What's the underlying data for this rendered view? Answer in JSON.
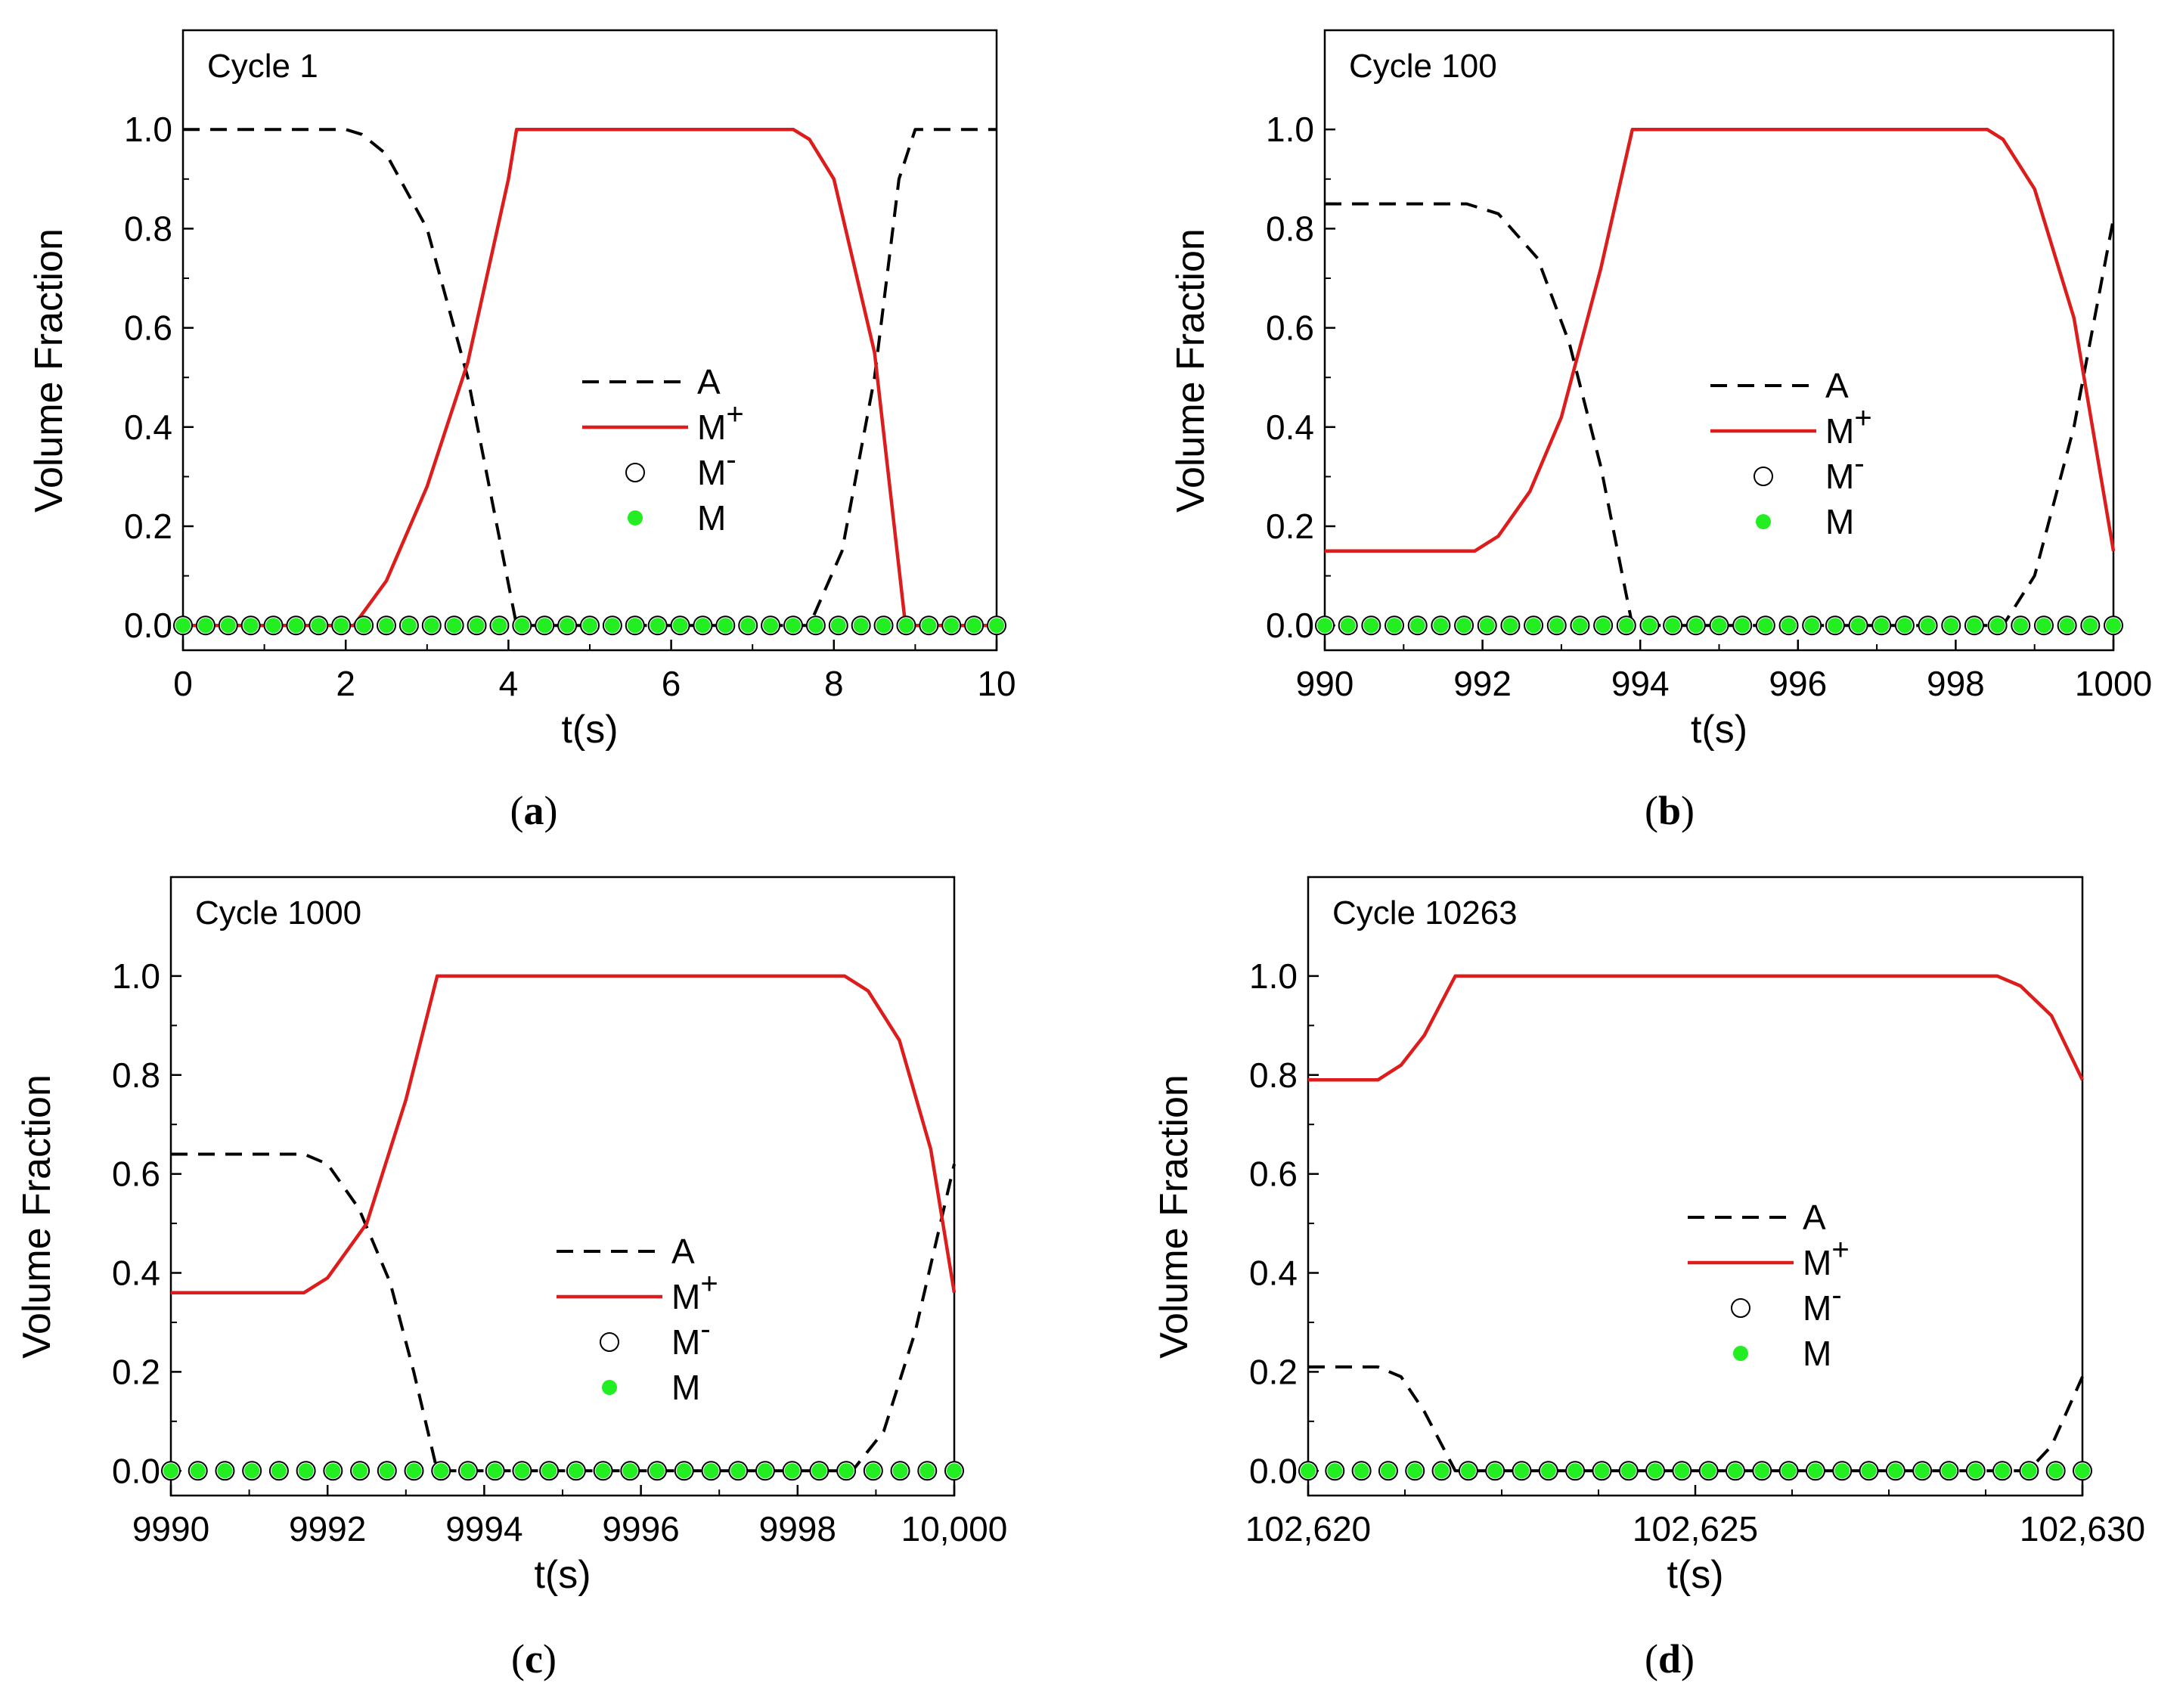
{
  "figure": {
    "colors": {
      "austenite": "#000000",
      "m_plus": "#dd1c1c",
      "m_minus": "#000000",
      "m": "#22ee22",
      "axes": "#000000"
    }
  },
  "chart_data": [
    {
      "id": "a",
      "panel_label": "a",
      "type": "line",
      "title": "Cycle 1",
      "xlabel": "t(s)",
      "ylabel": "Volume Fraction",
      "xlim": [
        0,
        10
      ],
      "ylim": [
        -0.05,
        1.2
      ],
      "x_ticks": [
        0,
        2,
        4,
        6,
        8,
        10
      ],
      "x_tick_labels": [
        "0",
        "2",
        "4",
        "6",
        "8",
        "10"
      ],
      "y_ticks": [
        0.0,
        0.2,
        0.4,
        0.6,
        0.8,
        1.0
      ],
      "y_tick_labels": [
        "0.0",
        "0.2",
        "0.4",
        "0.6",
        "0.8",
        "1.0"
      ],
      "legend": {
        "entries": [
          {
            "label": "A",
            "style": "dashed"
          },
          {
            "label": "M",
            "sup": "+",
            "style": "solid"
          },
          {
            "label": "M",
            "sup": "-",
            "style": "open-circle"
          },
          {
            "label": "M",
            "sup": "",
            "style": "filled-circle"
          }
        ]
      },
      "series": [
        {
          "name": "A",
          "x": [
            0,
            2,
            2.2,
            2.5,
            3.0,
            3.5,
            4.1,
            7.7,
            8.1,
            8.5,
            8.8,
            9.0,
            10
          ],
          "y": [
            1.0,
            1.0,
            0.99,
            0.95,
            0.8,
            0.5,
            0.0,
            0.0,
            0.15,
            0.5,
            0.9,
            1.0,
            1.0
          ]
        },
        {
          "name": "M+",
          "x": [
            0,
            2.1,
            2.5,
            3.0,
            3.5,
            4.0,
            4.1,
            7.5,
            7.7,
            8.0,
            8.5,
            8.88,
            10
          ],
          "y": [
            0.0,
            0.0,
            0.09,
            0.28,
            0.53,
            0.9,
            1.0,
            1.0,
            0.98,
            0.9,
            0.55,
            0.0,
            0.0
          ]
        },
        {
          "name": "M-",
          "x_start": 0,
          "x_end": 10,
          "count": 37,
          "y": 0.0
        },
        {
          "name": "M",
          "x_start": 0,
          "x_end": 10,
          "count": 37,
          "y": 0.0
        }
      ]
    },
    {
      "id": "b",
      "panel_label": "b",
      "type": "line",
      "title": "Cycle 100",
      "xlabel": "t(s)",
      "ylabel": "Volume Fraction",
      "xlim": [
        990,
        1000
      ],
      "ylim": [
        -0.05,
        1.2
      ],
      "x_ticks": [
        990,
        992,
        994,
        996,
        998,
        1000
      ],
      "x_tick_labels": [
        "990",
        "992",
        "994",
        "996",
        "998",
        "1000"
      ],
      "y_ticks": [
        0.0,
        0.2,
        0.4,
        0.6,
        0.8,
        1.0
      ],
      "y_tick_labels": [
        "0.0",
        "0.2",
        "0.4",
        "0.6",
        "0.8",
        "1.0"
      ],
      "legend": {
        "entries": [
          {
            "label": "A",
            "style": "dashed"
          },
          {
            "label": "M",
            "sup": "+",
            "style": "solid"
          },
          {
            "label": "M",
            "sup": "-",
            "style": "open-circle"
          },
          {
            "label": "M",
            "sup": "",
            "style": "filled-circle"
          }
        ]
      },
      "series": [
        {
          "name": "A",
          "x": [
            990,
            991.8,
            992.2,
            992.7,
            993.1,
            993.5,
            993.9,
            998.6,
            999.0,
            999.5,
            1000
          ],
          "y": [
            0.85,
            0.85,
            0.83,
            0.74,
            0.57,
            0.32,
            0.0,
            0.0,
            0.1,
            0.4,
            0.82
          ]
        },
        {
          "name": "M+",
          "x": [
            990,
            991.9,
            992.2,
            992.6,
            993.0,
            993.5,
            993.9,
            998.4,
            998.6,
            999.0,
            999.5,
            1000
          ],
          "y": [
            0.15,
            0.15,
            0.18,
            0.27,
            0.42,
            0.72,
            1.0,
            1.0,
            0.98,
            0.88,
            0.62,
            0.15
          ]
        },
        {
          "name": "M-",
          "x_start": 990,
          "x_end": 1000,
          "count": 35,
          "y": 0.0
        },
        {
          "name": "M",
          "x_start": 990,
          "x_end": 1000,
          "count": 35,
          "y": 0.0
        }
      ]
    },
    {
      "id": "c",
      "panel_label": "c",
      "type": "line",
      "title": "Cycle 1000",
      "xlabel": "t(s)",
      "ylabel": "Volume Fraction",
      "xlim": [
        9990,
        10000
      ],
      "ylim": [
        -0.05,
        1.2
      ],
      "x_ticks": [
        9990,
        9992,
        9994,
        9996,
        9998,
        10000
      ],
      "x_tick_labels": [
        "9990",
        "9992",
        "9994",
        "9996",
        "9998",
        "10,000"
      ],
      "y_ticks": [
        0.0,
        0.2,
        0.4,
        0.6,
        0.8,
        1.0
      ],
      "y_tick_labels": [
        "0.0",
        "0.2",
        "0.4",
        "0.6",
        "0.8",
        "1.0"
      ],
      "legend": {
        "entries": [
          {
            "label": "A",
            "style": "dashed"
          },
          {
            "label": "M",
            "sup": "+",
            "style": "solid"
          },
          {
            "label": "M",
            "sup": "-",
            "style": "open-circle"
          },
          {
            "label": "M",
            "sup": "",
            "style": "filled-circle"
          }
        ]
      },
      "series": [
        {
          "name": "A",
          "x": [
            9990,
            9991.7,
            9992.0,
            9992.4,
            9992.8,
            9993.1,
            9993.4,
            9998.7,
            9999.1,
            9999.5,
            10000
          ],
          "y": [
            0.64,
            0.64,
            0.62,
            0.53,
            0.38,
            0.2,
            0.0,
            0.0,
            0.08,
            0.28,
            0.62
          ]
        },
        {
          "name": "M+",
          "x": [
            9990,
            9991.7,
            9992.0,
            9992.5,
            9993.0,
            9993.4,
            9998.6,
            9998.9,
            9999.3,
            9999.7,
            10000
          ],
          "y": [
            0.36,
            0.36,
            0.39,
            0.5,
            0.75,
            1.0,
            1.0,
            0.97,
            0.87,
            0.65,
            0.36
          ]
        },
        {
          "name": "M-",
          "x_start": 9990,
          "x_end": 10000,
          "count": 30,
          "y": 0.0
        },
        {
          "name": "M",
          "x_start": 9990,
          "x_end": 10000,
          "count": 30,
          "y": 0.0
        }
      ]
    },
    {
      "id": "d",
      "panel_label": "d",
      "type": "line",
      "title": "Cycle 10263",
      "xlabel": "t(s)",
      "ylabel": "Volume Fraction",
      "xlim": [
        102620,
        102630
      ],
      "ylim": [
        -0.05,
        1.2
      ],
      "x_ticks": [
        102620,
        102625,
        102630
      ],
      "x_tick_labels": [
        "102,620",
        "102,625",
        "102,630"
      ],
      "x_minor_ticks": [
        102621.25,
        102622.5,
        102623.75,
        102626.25,
        102627.5,
        102628.75
      ],
      "y_ticks": [
        0.0,
        0.2,
        0.4,
        0.6,
        0.8,
        1.0
      ],
      "y_tick_labels": [
        "0.0",
        "0.2",
        "0.4",
        "0.6",
        "0.8",
        "1.0"
      ],
      "legend": {
        "entries": [
          {
            "label": "A",
            "style": "dashed"
          },
          {
            "label": "M",
            "sup": "+",
            "style": "solid"
          },
          {
            "label": "M",
            "sup": "-",
            "style": "open-circle"
          },
          {
            "label": "M",
            "sup": "",
            "style": "filled-circle"
          }
        ]
      },
      "series": [
        {
          "name": "A",
          "x": [
            102620,
            102620.9,
            102621.2,
            102621.5,
            102621.8,
            102621.9,
            102629.3,
            102629.6,
            102630
          ],
          "y": [
            0.21,
            0.21,
            0.19,
            0.12,
            0.03,
            0.0,
            0.0,
            0.05,
            0.19
          ]
        },
        {
          "name": "M+",
          "x": [
            102620,
            102620.9,
            102621.2,
            102621.5,
            102621.8,
            102621.9,
            102628.9,
            102629.2,
            102629.6,
            102630
          ],
          "y": [
            0.79,
            0.79,
            0.82,
            0.88,
            0.97,
            1.0,
            1.0,
            0.98,
            0.92,
            0.79
          ]
        },
        {
          "name": "M-",
          "x_start": 102620,
          "x_end": 102630,
          "count": 30,
          "y": 0.0
        },
        {
          "name": "M",
          "x_start": 102620,
          "x_end": 102630,
          "count": 30,
          "y": 0.0
        }
      ]
    }
  ]
}
